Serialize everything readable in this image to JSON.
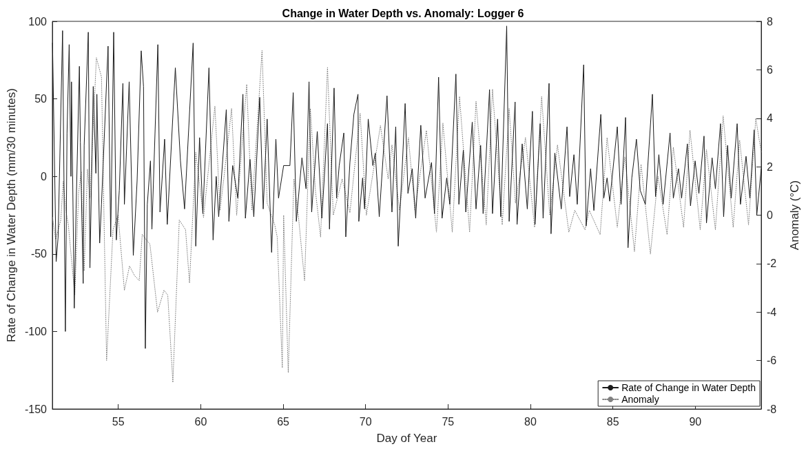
{
  "chart_data": {
    "type": "line",
    "title": "Change in Water Depth vs. Anomaly: Logger 6",
    "xlabel": "Day of Year",
    "ylabel": "Rate of Change in Water Depth (mm/30 minutes)",
    "y2label": "Anomaly (°C)",
    "xlim": [
      51,
      94
    ],
    "xticks": [
      55,
      60,
      65,
      70,
      75,
      80,
      85,
      90
    ],
    "ylim": [
      -150,
      100
    ],
    "yticks": [
      -150,
      -100,
      -50,
      0,
      50,
      100
    ],
    "y2lim": [
      -8,
      8
    ],
    "y2ticks": [
      -8,
      -6,
      -4,
      -2,
      0,
      2,
      4,
      6,
      8
    ],
    "grid": false,
    "legend": "bottom right",
    "marker": "none",
    "series": [
      {
        "name": "Rate of Change in Water Depth",
        "color": "#1a1a1a",
        "line_style": "solid",
        "x": [
          51.01,
          51.23,
          51.35,
          51.62,
          51.79,
          51.89,
          52.02,
          52.13,
          52.16,
          52.33,
          52.44,
          52.64,
          52.7,
          52.87,
          52.93,
          53.18,
          53.28,
          53.48,
          53.64,
          53.7,
          53.87,
          53.98,
          54.38,
          54.54,
          54.72,
          54.88,
          55.06,
          55.28,
          55.37,
          55.66,
          55.91,
          56.14,
          56.39,
          56.53,
          56.64,
          56.76,
          56.95,
          57.04,
          57.4,
          57.53,
          57.81,
          57.97,
          58.46,
          58.77,
          59.02,
          59.54,
          59.7,
          59.93,
          60.13,
          60.5,
          60.75,
          60.94,
          61.09,
          61.55,
          61.71,
          61.94,
          62.25,
          62.56,
          62.71,
          62.99,
          63.22,
          63.58,
          63.79,
          64.03,
          64.3,
          64.56,
          64.72,
          65.03,
          65.41,
          65.61,
          65.8,
          66.14,
          66.39,
          66.57,
          66.73,
          67.07,
          67.35,
          67.69,
          67.81,
          68.09,
          68.24,
          68.4,
          68.68,
          68.8,
          69.05,
          69.29,
          69.54,
          69.59,
          69.82,
          69.94,
          70.16,
          70.44,
          70.59,
          70.83,
          71.06,
          71.3,
          71.6,
          71.83,
          71.98,
          72.22,
          72.4,
          72.57,
          72.83,
          73.04,
          73.35,
          73.61,
          74.0,
          74.18,
          74.43,
          74.64,
          74.92,
          75.11,
          75.48,
          75.66,
          75.93,
          76.08,
          76.47,
          76.7,
          76.98,
          77.13,
          77.52,
          77.7,
          78.01,
          78.2,
          78.56,
          78.71,
          79.07,
          79.19,
          79.5,
          79.81,
          80.12,
          80.28,
          80.59,
          80.77,
          81.13,
          81.25,
          81.48,
          81.87,
          82.22,
          82.38,
          82.64,
          82.84,
          83.23,
          83.38,
          83.65,
          83.85,
          84.27,
          84.45,
          84.65,
          84.81,
          85.27,
          85.5,
          85.77,
          85.92,
          86.15,
          86.43,
          86.66,
          86.97,
          87.4,
          87.59,
          87.79,
          88.05,
          88.47,
          88.67,
          88.98,
          89.17,
          89.52,
          89.71,
          89.99,
          90.22,
          90.53,
          90.68,
          91.02,
          91.22,
          91.53,
          91.72,
          91.96,
          92.18,
          92.54,
          92.74,
          93.08,
          93.31,
          93.57,
          93.73,
          94.0
        ],
        "values": [
          86,
          -55,
          -39,
          94,
          -100,
          28,
          85,
          0,
          61,
          -85,
          -21,
          71,
          22,
          -69,
          20,
          93,
          -59,
          58,
          2,
          53,
          -43,
          -18,
          84,
          -39,
          93,
          -41,
          -9,
          60,
          -18,
          61,
          -51,
          -3,
          81,
          58,
          -111,
          -18,
          10,
          -34,
          85,
          -23,
          24,
          -31,
          70,
          10,
          -21,
          86,
          -45,
          25,
          -24,
          70,
          -41,
          0,
          -26,
          43,
          -29,
          7,
          -14,
          53,
          -27,
          11,
          -26,
          51,
          -21,
          37,
          -49,
          24,
          -14,
          7,
          7,
          54,
          -29,
          12,
          -8,
          61,
          -23,
          29,
          -27,
          34,
          -34,
          57,
          -14,
          7,
          28,
          -39,
          9,
          40,
          53,
          -29,
          -1,
          -21,
          37,
          7,
          15,
          -26,
          12,
          52,
          -23,
          32,
          -45,
          5,
          47,
          -11,
          5,
          -27,
          33,
          -14,
          9,
          -24,
          64,
          -27,
          -1,
          -18,
          66,
          -18,
          17,
          -23,
          35,
          -21,
          20,
          -24,
          56,
          -24,
          37,
          -26,
          97,
          -29,
          48,
          -31,
          21,
          -21,
          42,
          -31,
          34,
          -27,
          60,
          -37,
          15,
          -21,
          32,
          -13,
          14,
          -18,
          72,
          -32,
          5,
          -22,
          40,
          -14,
          -1,
          -16,
          32,
          -18,
          38,
          -46,
          -1,
          24,
          -9,
          -18,
          53,
          -13,
          14,
          -18,
          28,
          -14,
          5,
          -14,
          21,
          -19,
          10,
          -11,
          26,
          -30,
          12,
          -8,
          34,
          -26,
          20,
          -14,
          34,
          -18,
          13,
          -14,
          30,
          -25,
          5
        ]
      },
      {
        "name": "Anomaly",
        "color": "#808080",
        "line_style": "dotted",
        "axis": "y2",
        "x": [
          51.01,
          51.2,
          51.51,
          51.66,
          51.82,
          51.97,
          52.36,
          52.59,
          52.75,
          52.93,
          53.13,
          53.28,
          53.67,
          53.98,
          54.29,
          54.68,
          54.99,
          55.37,
          55.68,
          55.99,
          56.27,
          56.45,
          56.92,
          57.38,
          57.77,
          58.0,
          58.31,
          58.7,
          59.08,
          59.32,
          59.7,
          60.17,
          60.86,
          61.17,
          61.4,
          61.87,
          62.18,
          62.79,
          63.1,
          63.72,
          64.03,
          64.49,
          64.64,
          64.95,
          65.03,
          65.31,
          65.65,
          65.92,
          66.3,
          66.65,
          66.96,
          67.27,
          67.69,
          68.04,
          68.58,
          69.05,
          69.67,
          70.05,
          70.9,
          71.37,
          71.6,
          72.06,
          72.6,
          72.99,
          73.69,
          74.3,
          74.69,
          75.26,
          75.7,
          76.31,
          76.7,
          77.32,
          77.7,
          78.29,
          78.71,
          79.09,
          79.7,
          80.25,
          80.68,
          81.17,
          81.64,
          82.33,
          82.69,
          83.31,
          83.57,
          84.23,
          84.65,
          85.27,
          85.73,
          86.31,
          86.71,
          87.28,
          87.74,
          88.29,
          88.67,
          89.29,
          89.68,
          90.3,
          90.68,
          91.22,
          91.69,
          92.3,
          92.69,
          93.23,
          93.67,
          94.0
        ],
        "values": [
          -0.1,
          -1.0,
          -0.2,
          1.4,
          0.2,
          -0.4,
          -3.3,
          0.9,
          1.8,
          -2.3,
          1.9,
          0.7,
          6.5,
          5.7,
          -6.0,
          -0.6,
          0.0,
          -3.1,
          -2.1,
          -2.5,
          -2.7,
          -0.8,
          -1.2,
          -4.0,
          -3.1,
          -3.3,
          -6.9,
          -0.2,
          -0.6,
          -2.8,
          2.6,
          -0.1,
          4.5,
          0.2,
          1.5,
          4.4,
          0.0,
          5.4,
          0.2,
          6.8,
          0.5,
          -0.4,
          -0.9,
          -6.3,
          0.0,
          -6.5,
          1.5,
          0.0,
          -2.7,
          4.4,
          1.0,
          -0.9,
          6.1,
          0.0,
          1.5,
          0.1,
          4.2,
          0.0,
          3.7,
          1.5,
          2.9,
          0.2,
          3.2,
          0.2,
          3.5,
          -0.7,
          3.8,
          -0.7,
          4.9,
          -0.7,
          4.7,
          -0.4,
          5.2,
          -0.4,
          4.4,
          0.5,
          3.2,
          -0.5,
          4.9,
          0.0,
          2.9,
          -0.7,
          0.2,
          -0.6,
          0.2,
          -0.8,
          3.2,
          -0.5,
          2.4,
          -1.5,
          2.1,
          -1.6,
          1.6,
          -0.8,
          2.8,
          -0.5,
          3.5,
          -0.6,
          2.7,
          -0.6,
          4.1,
          -0.5,
          3.1,
          -0.4,
          4.0,
          2.6
        ]
      }
    ]
  }
}
